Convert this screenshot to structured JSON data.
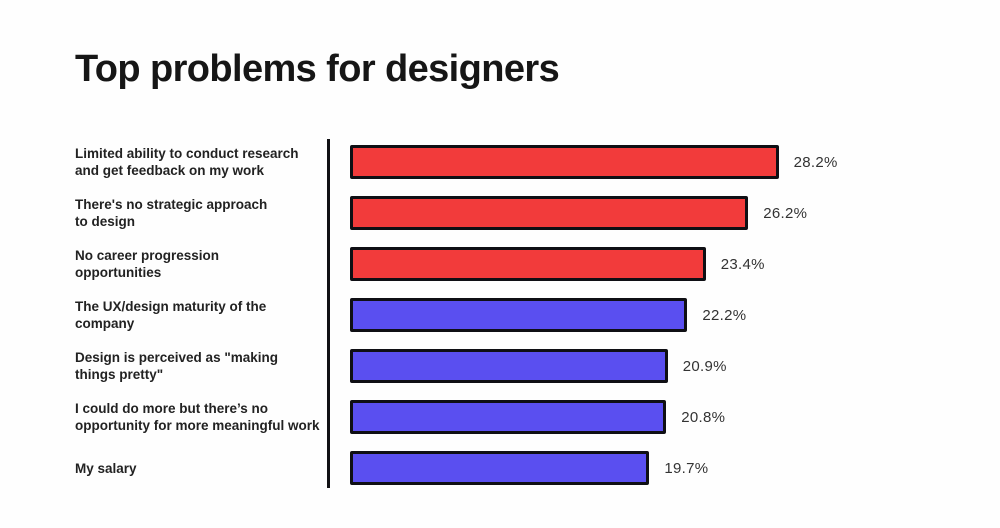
{
  "title": "Top problems for designers",
  "colors": {
    "background": "#fefefe",
    "red_bar": "#f23b3b",
    "blue_bar": "#5a4ff0",
    "bar_border": "#0f0f14",
    "axis_line": "#111114",
    "title_text": "#161616",
    "label_text": "#222222",
    "value_text": "#333333"
  },
  "chart_data": {
    "type": "bar",
    "orientation": "horizontal",
    "title": "Top problems for designers",
    "categories": [
      "Limited ability to conduct research\nand get feedback on my work",
      "There's no strategic approach\nto design",
      "No career progression\nopportunities",
      "The UX/design maturity of the\ncompany",
      "Design is perceived as \"making\nthings pretty\"",
      "I could do more but there’s no\nopportunity for more meaningful work",
      "My salary"
    ],
    "values": [
      28.2,
      26.2,
      23.4,
      22.2,
      20.9,
      20.8,
      19.7
    ],
    "value_labels": [
      "28.2%",
      "26.2%",
      "23.4%",
      "22.2%",
      "20.9%",
      "20.8%",
      "19.7%"
    ],
    "bar_colors": [
      "#f23b3b",
      "#f23b3b",
      "#f23b3b",
      "#5a4ff0",
      "#5a4ff0",
      "#5a4ff0",
      "#5a4ff0"
    ],
    "xlabel": "",
    "ylabel": "",
    "xlim": [
      0,
      30
    ],
    "grid": false,
    "legend": "none",
    "data_labels": "outside-end"
  }
}
